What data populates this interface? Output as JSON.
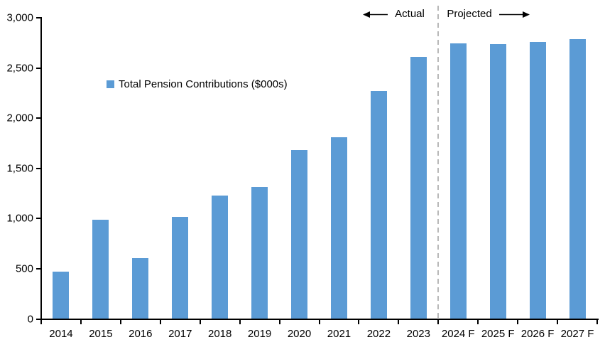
{
  "chart_data": {
    "type": "bar",
    "title": "",
    "xlabel": "",
    "ylabel": "",
    "legend": "Total Pension Contributions ($000s)",
    "legend_position": "inside-upper-left",
    "grid": false,
    "categories": [
      "2014",
      "2015",
      "2016",
      "2017",
      "2018",
      "2019",
      "2020",
      "2021",
      "2022",
      "2023",
      "2024 F",
      "2025 F",
      "2026 F",
      "2027 F"
    ],
    "values": [
      470,
      990,
      605,
      1015,
      1230,
      1315,
      1680,
      1810,
      2270,
      2610,
      2745,
      2735,
      2760,
      2785
    ],
    "ylim": [
      0,
      3000
    ],
    "ytick_step": 500,
    "ytick_labels": [
      "0",
      "500",
      "1,000",
      "1,500",
      "2,000",
      "2,500",
      "3,000"
    ],
    "bar_color": "#5B9BD5",
    "axis_color": "#000000",
    "annotations": {
      "actual_label": "Actual",
      "projected_label": "Projected",
      "divider_after_category": "2023",
      "divider_color": "#A6A6A6",
      "arrow_color": "#000000"
    }
  }
}
